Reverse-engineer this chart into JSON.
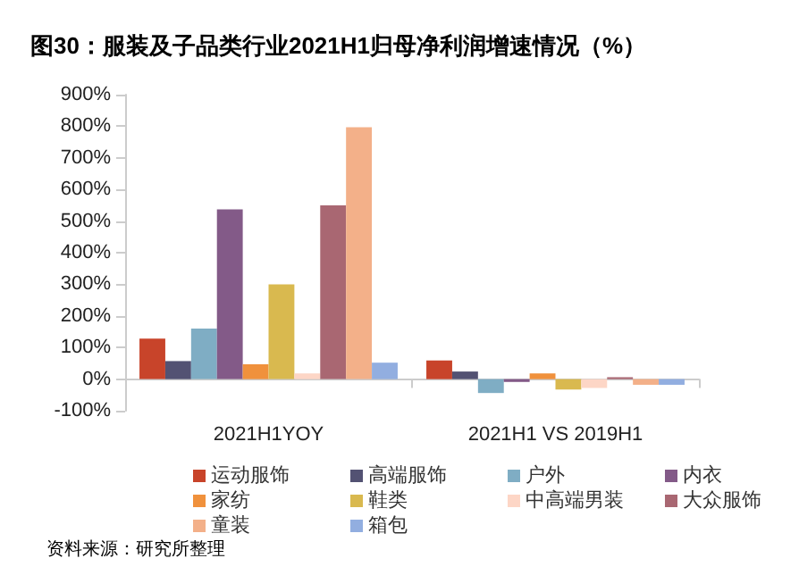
{
  "chart_data": {
    "type": "bar",
    "title": "图30：服装及子品类行业2021H1归母净利润增速情况（%）",
    "categories": [
      "2021H1YOY",
      "2021H1 VS 2019H1"
    ],
    "series": [
      {
        "name": "运动服饰",
        "color": "#c8442a",
        "values": [
          128,
          59
        ]
      },
      {
        "name": "高端服饰",
        "color": "#535273",
        "values": [
          57,
          24
        ]
      },
      {
        "name": "户外",
        "color": "#7fadc4",
        "values": [
          160,
          -44
        ]
      },
      {
        "name": "内衣",
        "color": "#835a88",
        "values": [
          537,
          -9
        ]
      },
      {
        "name": "家纺",
        "color": "#f0913c",
        "values": [
          47,
          18
        ]
      },
      {
        "name": "鞋类",
        "color": "#d9b94f",
        "values": [
          300,
          -33
        ]
      },
      {
        "name": "中高端男装",
        "color": "#fdd6c6",
        "values": [
          18,
          -28
        ]
      },
      {
        "name": "大众服饰",
        "color": "#a96772",
        "values": [
          550,
          6
        ]
      },
      {
        "name": "童装",
        "color": "#f3b089",
        "values": [
          797,
          -18
        ]
      },
      {
        "name": "箱包",
        "color": "#92aee0",
        "values": [
          52,
          -18
        ]
      }
    ],
    "ylim": [
      -100,
      900
    ],
    "yticks": [
      {
        "value": -100,
        "label": "-100%"
      },
      {
        "value": 0,
        "label": "0%"
      },
      {
        "value": 100,
        "label": "100%"
      },
      {
        "value": 200,
        "label": "200%"
      },
      {
        "value": 300,
        "label": "300%"
      },
      {
        "value": 400,
        "label": "400%"
      },
      {
        "value": 500,
        "label": "500%"
      },
      {
        "value": 600,
        "label": "600%"
      },
      {
        "value": 700,
        "label": "700%"
      },
      {
        "value": 800,
        "label": "800%"
      },
      {
        "value": 900,
        "label": "900%"
      }
    ],
    "grid": false,
    "legend": "bottom",
    "annotations": [
      "资料来源：研究所整理"
    ]
  }
}
